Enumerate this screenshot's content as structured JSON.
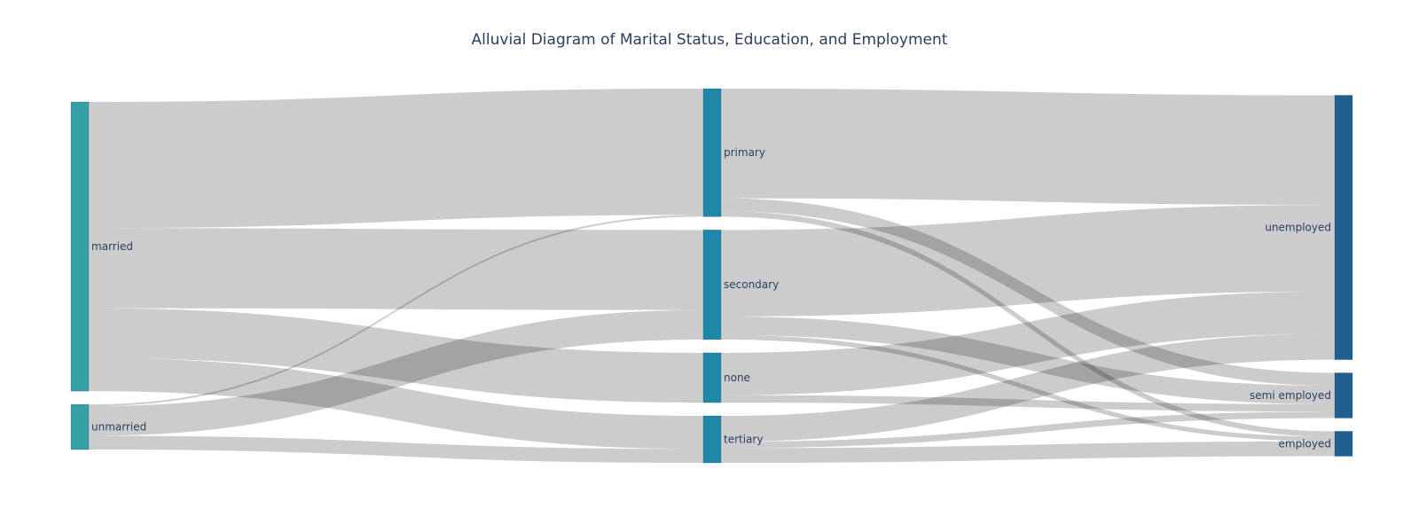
{
  "chart_data": {
    "type": "sankey",
    "title": "Alluvial Diagram of Marital Status, Education, and Employment",
    "columns": [
      {
        "key": "marital",
        "nodes": [
          {
            "id": "married",
            "label": "married",
            "color": "#35a0a6"
          },
          {
            "id": "unmarried",
            "label": "unmarried",
            "color": "#35a0a6"
          }
        ]
      },
      {
        "key": "education",
        "nodes": [
          {
            "id": "primary",
            "label": "primary",
            "color": "#1f88a8"
          },
          {
            "id": "secondary",
            "label": "secondary",
            "color": "#1f88a8"
          },
          {
            "id": "none",
            "label": "none",
            "color": "#1f88a8"
          },
          {
            "id": "tertiary",
            "label": "tertiary",
            "color": "#1f88a8"
          }
        ]
      },
      {
        "key": "employment",
        "nodes": [
          {
            "id": "unemployed",
            "label": "unemployed",
            "color": "#1f5e8e"
          },
          {
            "id": "semi_employed",
            "label": "semi employed",
            "color": "#1f5e8e"
          },
          {
            "id": "employed",
            "label": "employed",
            "color": "#1f5e8e"
          }
        ]
      }
    ],
    "links": [
      {
        "source": "married",
        "target": "primary",
        "value": 137
      },
      {
        "source": "married",
        "target": "secondary",
        "value": 87
      },
      {
        "source": "married",
        "target": "none",
        "value": 54
      },
      {
        "source": "married",
        "target": "tertiary",
        "value": 36
      },
      {
        "source": "unmarried",
        "target": "primary",
        "value": 2
      },
      {
        "source": "unmarried",
        "target": "secondary",
        "value": 32
      },
      {
        "source": "unmarried",
        "target": "tertiary",
        "value": 15
      },
      {
        "source": "primary",
        "target": "unemployed",
        "value": 119
      },
      {
        "source": "primary",
        "target": "semi_employed",
        "value": 14
      },
      {
        "source": "primary",
        "target": "employed",
        "value": 6
      },
      {
        "source": "secondary",
        "target": "unemployed",
        "value": 94
      },
      {
        "source": "secondary",
        "target": "semi_employed",
        "value": 20
      },
      {
        "source": "secondary",
        "target": "employed",
        "value": 5
      },
      {
        "source": "none",
        "target": "unemployed",
        "value": 46
      },
      {
        "source": "none",
        "target": "semi_employed",
        "value": 8
      },
      {
        "source": "tertiary",
        "target": "unemployed",
        "value": 28
      },
      {
        "source": "tertiary",
        "target": "semi_employed",
        "value": 7
      },
      {
        "source": "tertiary",
        "target": "employed",
        "value": 16
      }
    ],
    "node_border_color": "#2a3f5f",
    "link_color": "#cccccc",
    "link_overlap_color": "#999999"
  }
}
